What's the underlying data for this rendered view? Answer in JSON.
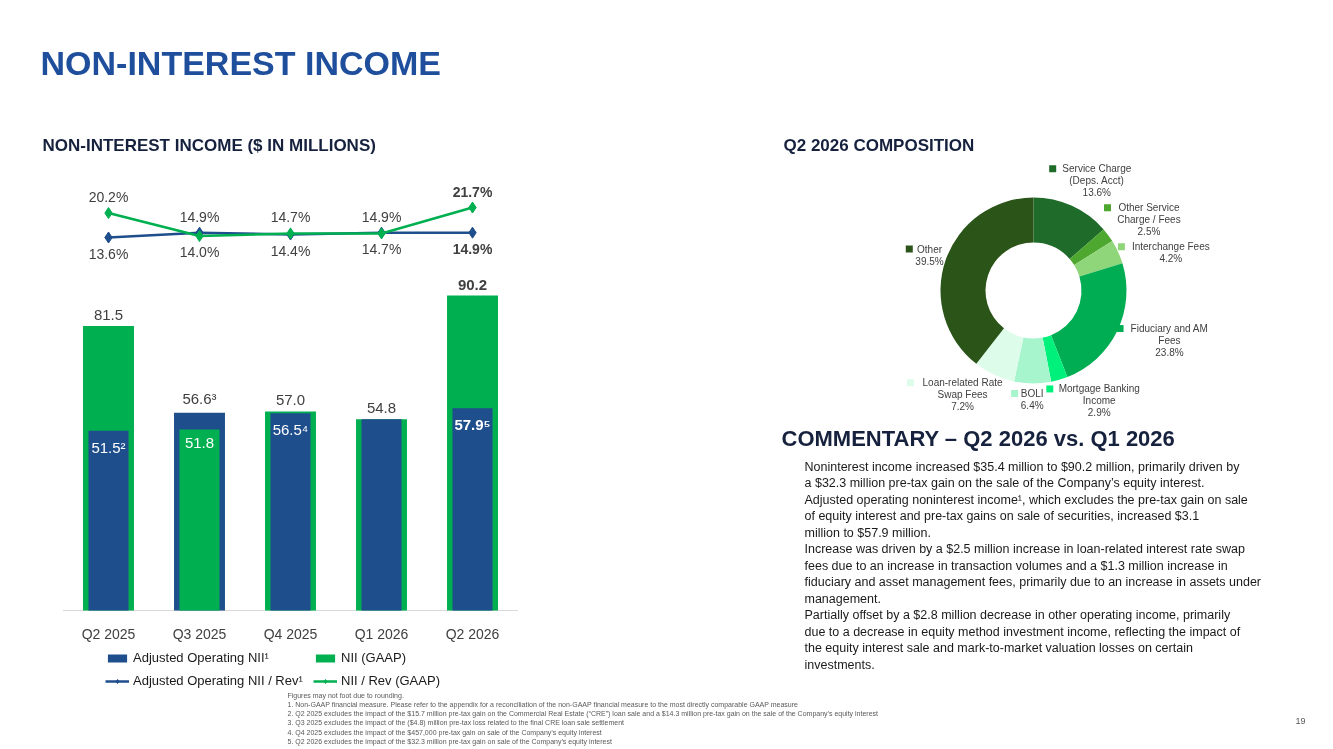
{
  "chart_data": [
    {
      "type": "line",
      "title": "NON-INTEREST INCOME",
      "subtitle": "NON-INTEREST INCOME ($ IN MILLIONS)",
      "categories": [
        "Q2 2025",
        "Q3 2025",
        "Q4 2025",
        "Q1 2026",
        "Q2 2026"
      ],
      "series": [
        {
          "name": "Adjusted Operating NII / Rev¹",
          "color": "#1f4e8c",
          "values": [
            13.6,
            14.9,
            14.4,
            14.9,
            14.9
          ],
          "value_labels": [
            "13.6%",
            "14.9%",
            "14.4%",
            "14.9%",
            "14.9%"
          ]
        },
        {
          "name": "NII / Rev (GAAP)",
          "color": "#00b050",
          "values": [
            20.2,
            14.0,
            14.7,
            14.7,
            21.7
          ],
          "value_labels": [
            "20.2%",
            "14.0%",
            "14.7%",
            "14.7%",
            "21.7%"
          ]
        }
      ],
      "marker": "diamond",
      "legend": "bottom",
      "tick_labels": false
    },
    {
      "type": "bar",
      "categories": [
        "Q2 2025",
        "Q3 2025",
        "Q4 2025",
        "Q1 2026",
        "Q2 2026"
      ],
      "series": [
        {
          "name": "Adjusted Operating NII¹",
          "color": "#1f4e8c",
          "values": [
            51.5,
            56.6,
            56.5,
            54.8,
            57.9
          ],
          "value_labels": [
            "51.5²",
            "56.6³",
            "56.5⁴",
            null,
            "57.9⁵"
          ]
        },
        {
          "name": "NII (GAAP)",
          "color": "#00b050",
          "values": [
            81.5,
            51.8,
            57.0,
            54.8,
            90.2
          ],
          "value_labels": [
            "81.5",
            "51.8",
            "57.0",
            "54.8",
            "90.2"
          ]
        }
      ],
      "legend": "bottom",
      "tick_labels": "x",
      "annotations": [
        "Figures may not foot due to rounding.",
        "1. Non-GAAP financial measure. Please refer to the appendix for a reconciliation of the non-GAAP financial measure to the most directly comparable GAAP measure",
        "2. Q2 2025 excludes the impact of the $15.7 million pre-tax gain on the Commercial Real Estate (“CRE”) loan sale and a $14.3 million pre-tax gain on the sale of the Company’s equity interest",
        "3. Q3 2025 excludes the impact of the ($4.8) million pre-tax loss related to the final CRE loan sale settlement",
        "4. Q4 2025 excludes the impact of the $457,000 pre-tax gain on sale of the Company’s equity interest",
        "5. Q2 2026 excludes the impact of the $32.3 million pre-tax gain on sale of the Company’s equity interest",
        "19"
      ]
    },
    {
      "type": "donut",
      "title": "Q2 2026 COMPOSITION",
      "categories": [
        "Service Charge (Deps. Acct)",
        "Other Service Charge / Fees",
        "Interchange Fees",
        "Fiduciary and AM Fees",
        "Mortgage Banking Income",
        "BOLI",
        "Loan-related Rate Swap Fees",
        "Other"
      ],
      "values": [
        13.6,
        2.5,
        4.2,
        23.8,
        2.9,
        6.4,
        7.2,
        39.5
      ],
      "colors": [
        "#1e6b2a",
        "#4ea72e",
        "#8fd67a",
        "#00ad52",
        "#00f07c",
        "#a6f5cd",
        "#ddfcea",
        "#2b5419"
      ],
      "value_labels": [
        "13.6%",
        "2.5%",
        "4.2%",
        "23.8%",
        "2.9%",
        "6.4%",
        "7.2%",
        "39.5%"
      ],
      "legend": "right"
    },
    {
      "type": "other",
      "title": "COMMENTARY – Q2 2026 vs. Q1 2026",
      "annotations": [
        "Noninterest income increased $35.4 million to $90.2 million, primarily driven by a $32.3 million pre-tax gain on the sale of the Company’s equity interest.",
        "Adjusted operating noninterest income¹, which excludes the pre-tax gain on sale of equity interest and pre-tax gains on sale of securities, increased $3.1 million to $57.9 million.",
        "Increase was driven by a $2.5 million increase in loan-related interest rate swap fees due to an increase in transaction volumes and a $1.3 million increase in fiduciary and asset management fees, primarily due to an increase in assets under management.",
        "Partially offset by a $2.8 million decrease in other operating income, primarily due to a decrease in equity method investment income, reflecting the impact of the equity interest sale and mark-to-market valuation losses on certain investments."
      ]
    }
  ]
}
